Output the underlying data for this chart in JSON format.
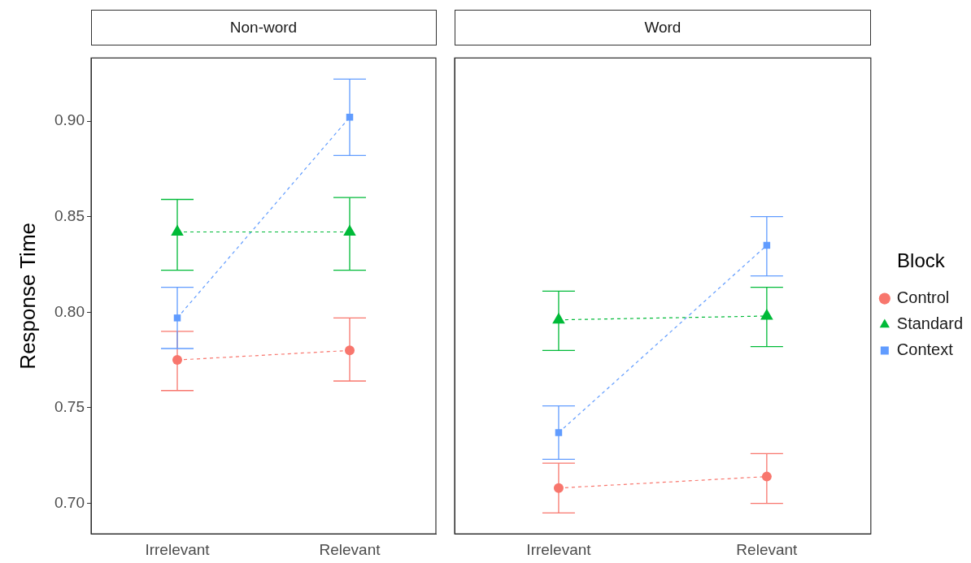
{
  "chart_data": [
    {
      "type": "line",
      "title": "Non-word",
      "ylabel": "Response Time",
      "categories": [
        "Irrelevant",
        "Relevant"
      ],
      "ylim": [
        0.684,
        0.933
      ],
      "yticks": [
        {
          "value": 0.7,
          "label": "0.70"
        },
        {
          "value": 0.75,
          "label": "0.75"
        },
        {
          "value": 0.8,
          "label": "0.80"
        },
        {
          "value": 0.85,
          "label": "0.85"
        },
        {
          "value": 0.9,
          "label": "0.90"
        }
      ],
      "line_style": "dashed",
      "grid": false,
      "legend": false,
      "series": [
        {
          "color": "#f8766d",
          "marker": "circle",
          "values": [
            0.775,
            0.78
          ],
          "errors": [
            [
              0.759,
              0.79
            ],
            [
              0.764,
              0.797
            ]
          ]
        },
        {
          "color": "#00ba38",
          "marker": "triangle",
          "values": [
            0.842,
            0.842
          ],
          "errors": [
            [
              0.822,
              0.859
            ],
            [
              0.822,
              0.86
            ]
          ]
        },
        {
          "color": "#619cff",
          "marker": "square",
          "values": [
            0.797,
            0.902
          ],
          "errors": [
            [
              0.781,
              0.813
            ],
            [
              0.882,
              0.922
            ]
          ]
        }
      ]
    },
    {
      "type": "line",
      "title": "Word",
      "categories": [
        "Irrelevant",
        "Relevant"
      ],
      "ylim": [
        0.684,
        0.933
      ],
      "tick_labels": "x",
      "line_style": "dashed",
      "grid": false,
      "legend": "right",
      "legend_title": "Block",
      "series": [
        {
          "name": "Control",
          "color": "#f8766d",
          "marker": "circle",
          "values": [
            0.708,
            0.714
          ],
          "errors": [
            [
              0.695,
              0.721
            ],
            [
              0.7,
              0.726
            ]
          ]
        },
        {
          "name": "Standard",
          "color": "#00ba38",
          "marker": "triangle",
          "values": [
            0.796,
            0.798
          ],
          "errors": [
            [
              0.78,
              0.811
            ],
            [
              0.782,
              0.813
            ]
          ]
        },
        {
          "name": "Context",
          "color": "#619cff",
          "marker": "square",
          "values": [
            0.737,
            0.835
          ],
          "errors": [
            [
              0.723,
              0.751
            ],
            [
              0.819,
              0.85
            ]
          ]
        }
      ]
    }
  ]
}
